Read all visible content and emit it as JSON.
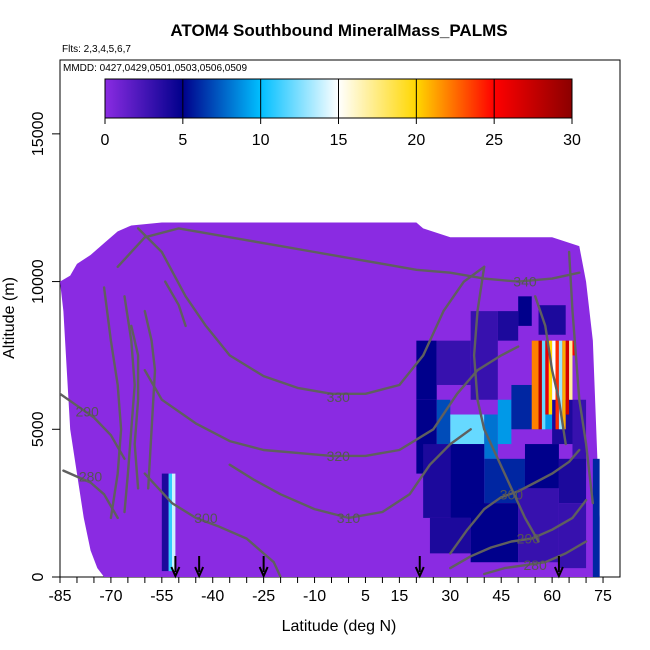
{
  "chart_data": {
    "type": "heatmap",
    "title": "ATOM4 Southbound MineralMass_PALMS",
    "flights_text": "Flts: 2,3,4,5,6,7",
    "dates_text": "MMDD: 0427,0429,0501,0503,0506,0509",
    "xlabel": "Latitude (deg N)",
    "ylabel": "Altitude (m)",
    "xlim": [
      -85,
      80
    ],
    "ylim": [
      0,
      17500
    ],
    "x_ticks": [
      -85,
      -70,
      -55,
      -40,
      -25,
      -10,
      5,
      15,
      30,
      45,
      60,
      75
    ],
    "y_ticks": [
      0,
      5000,
      10000,
      15000
    ],
    "colorbar": {
      "min": 0,
      "max": 30,
      "ticks": [
        0,
        5,
        10,
        15,
        20,
        25,
        30
      ],
      "colors": [
        "#8a2be2",
        "#00008b",
        "#00bfff",
        "#ffffff",
        "#ffd700",
        "#ff0000",
        "#8b0000"
      ]
    },
    "coverage_upper_km": [
      [
        -85,
        10
      ],
      [
        -82,
        10.2
      ],
      [
        -80,
        10.6
      ],
      [
        -76,
        10.9
      ],
      [
        -72,
        11.3
      ],
      [
        -68,
        11.7
      ],
      [
        -64,
        11.9
      ],
      [
        -55,
        12
      ],
      [
        -40,
        12
      ],
      [
        -25,
        12
      ],
      [
        -10,
        12
      ],
      [
        0,
        12
      ],
      [
        10,
        12
      ],
      [
        20,
        12
      ],
      [
        22,
        11.8
      ],
      [
        30,
        11.5
      ],
      [
        40,
        11.5
      ],
      [
        50,
        11.5
      ],
      [
        60,
        11.5
      ],
      [
        68,
        11.2
      ],
      [
        70,
        10
      ],
      [
        72,
        8
      ],
      [
        73,
        5
      ],
      [
        74,
        2
      ],
      [
        74,
        0
      ]
    ],
    "coverage_lower_km": [
      [
        -85,
        10
      ],
      [
        -84,
        9
      ],
      [
        -83,
        7
      ],
      [
        -82,
        5
      ],
      [
        -80,
        3.5
      ],
      [
        -78,
        2
      ],
      [
        -76,
        0.9
      ],
      [
        -74,
        0.3
      ],
      [
        -72,
        0
      ]
    ],
    "cells": [
      {
        "x": [
          -55,
          -53
        ],
        "y": [
          0.2,
          3.5
        ],
        "v": 4
      },
      {
        "x": [
          -53,
          -52
        ],
        "y": [
          0.2,
          3.5
        ],
        "v": 11
      },
      {
        "x": [
          -52,
          -51
        ],
        "y": [
          0.2,
          3.5
        ],
        "v": 14
      },
      {
        "x": [
          20,
          26
        ],
        "y": [
          6.0,
          8.0
        ],
        "v": 5
      },
      {
        "x": [
          26,
          36
        ],
        "y": [
          6.5,
          8.0
        ],
        "v": 3
      },
      {
        "x": [
          36,
          44
        ],
        "y": [
          6.0,
          9.0
        ],
        "v": 3
      },
      {
        "x": [
          44,
          50
        ],
        "y": [
          8.0,
          9.0
        ],
        "v": 4
      },
      {
        "x": [
          50,
          54
        ],
        "y": [
          8.5,
          9.5
        ],
        "v": 5
      },
      {
        "x": [
          56,
          64
        ],
        "y": [
          8.2,
          9.2
        ],
        "v": 4
      },
      {
        "x": [
          20,
          26
        ],
        "y": [
          3.5,
          6.0
        ],
        "v": 5
      },
      {
        "x": [
          26,
          30
        ],
        "y": [
          4.5,
          6.0
        ],
        "v": 7
      },
      {
        "x": [
          30,
          40
        ],
        "y": [
          4.5,
          5.5
        ],
        "v": 12
      },
      {
        "x": [
          40,
          44
        ],
        "y": [
          4.0,
          5.5
        ],
        "v": 8
      },
      {
        "x": [
          44,
          48
        ],
        "y": [
          4.5,
          6.0
        ],
        "v": 9
      },
      {
        "x": [
          48,
          54
        ],
        "y": [
          5.0,
          6.5
        ],
        "v": 6
      },
      {
        "x": [
          54,
          56
        ],
        "y": [
          5.0,
          7.0
        ],
        "v": 7
      },
      {
        "x": [
          56,
          60
        ],
        "y": [
          5.0,
          6.0
        ],
        "v": 9
      },
      {
        "x": [
          60,
          66
        ],
        "y": [
          4.5,
          6.0
        ],
        "v": 4
      },
      {
        "x": [
          66,
          70
        ],
        "y": [
          3.5,
          6.0
        ],
        "v": 3
      },
      {
        "x": [
          22,
          30
        ],
        "y": [
          2.0,
          4.5
        ],
        "v": 4
      },
      {
        "x": [
          30,
          40
        ],
        "y": [
          2.0,
          4.5
        ],
        "v": 5
      },
      {
        "x": [
          40,
          52
        ],
        "y": [
          2.5,
          4.0
        ],
        "v": 6
      },
      {
        "x": [
          52,
          62
        ],
        "y": [
          3.0,
          4.5
        ],
        "v": 5
      },
      {
        "x": [
          62,
          70
        ],
        "y": [
          2.5,
          4.0
        ],
        "v": 4
      },
      {
        "x": [
          24,
          36
        ],
        "y": [
          0.8,
          2.0
        ],
        "v": 4
      },
      {
        "x": [
          36,
          50
        ],
        "y": [
          0.5,
          2.5
        ],
        "v": 5
      },
      {
        "x": [
          50,
          62
        ],
        "y": [
          0.5,
          3.0
        ],
        "v": 3
      },
      {
        "x": [
          62,
          70
        ],
        "y": [
          0.3,
          2.5
        ],
        "v": 3
      },
      {
        "x": [
          54,
          56
        ],
        "y": [
          5.0,
          8.0
        ],
        "v": 22
      },
      {
        "x": [
          56,
          57
        ],
        "y": [
          5.0,
          8.0
        ],
        "v": 28
      },
      {
        "x": [
          57,
          58
        ],
        "y": [
          5.0,
          8.0
        ],
        "v": 12
      },
      {
        "x": [
          58,
          59
        ],
        "y": [
          5.5,
          8.0
        ],
        "v": 26
      },
      {
        "x": [
          59,
          60
        ],
        "y": [
          5.5,
          8.0
        ],
        "v": 20
      },
      {
        "x": [
          60,
          61
        ],
        "y": [
          6.0,
          8.0
        ],
        "v": 15
      },
      {
        "x": [
          61,
          62
        ],
        "y": [
          5.0,
          8.0
        ],
        "v": 24
      },
      {
        "x": [
          62,
          63
        ],
        "y": [
          5.0,
          8.0
        ],
        "v": 13
      },
      {
        "x": [
          63,
          64
        ],
        "y": [
          5.0,
          8.0
        ],
        "v": 21
      },
      {
        "x": [
          64,
          65
        ],
        "y": [
          5.5,
          8.0
        ],
        "v": 27
      },
      {
        "x": [
          65,
          66
        ],
        "y": [
          6.0,
          8.0
        ],
        "v": 17
      },
      {
        "x": [
          66,
          67
        ],
        "y": [
          7.5,
          8.0
        ],
        "v": 25
      },
      {
        "x": [
          72,
          74
        ],
        "y": [
          0.0,
          4.0
        ],
        "v": 6
      }
    ],
    "contours": [
      {
        "label": "340",
        "label_at": [
          52,
          10.0
        ],
        "points": [
          [
            -68,
            10.5
          ],
          [
            -60,
            11.5
          ],
          [
            -50,
            11.8
          ],
          [
            -40,
            11.6
          ],
          [
            -30,
            11.4
          ],
          [
            -20,
            11.2
          ],
          [
            -10,
            11.0
          ],
          [
            0,
            10.8
          ],
          [
            10,
            10.6
          ],
          [
            20,
            10.4
          ],
          [
            30,
            10.3
          ],
          [
            40,
            10.1
          ],
          [
            50,
            10.0
          ],
          [
            60,
            10.1
          ],
          [
            68,
            10.3
          ]
        ]
      },
      {
        "label": "330",
        "label_at": [
          -3,
          6.1
        ],
        "points": [
          [
            -62,
            11.8
          ],
          [
            -55,
            11.0
          ],
          [
            -48,
            9.5
          ],
          [
            -42,
            8.5
          ],
          [
            -35,
            7.5
          ],
          [
            -25,
            6.8
          ],
          [
            -15,
            6.4
          ],
          [
            -5,
            6.2
          ],
          [
            5,
            6.2
          ],
          [
            15,
            6.5
          ],
          [
            22,
            7.5
          ],
          [
            28,
            9.0
          ],
          [
            34,
            10.0
          ],
          [
            40,
            10.5
          ]
        ]
      },
      {
        "label": "320",
        "label_at": [
          -3,
          4.1
        ],
        "points": [
          [
            -60,
            7.0
          ],
          [
            -55,
            6.0
          ],
          [
            -45,
            5.2
          ],
          [
            -35,
            4.6
          ],
          [
            -25,
            4.3
          ],
          [
            -15,
            4.2
          ],
          [
            -5,
            4.1
          ],
          [
            5,
            4.1
          ],
          [
            15,
            4.3
          ],
          [
            25,
            5.0
          ],
          [
            32,
            6.2
          ],
          [
            38,
            7.0
          ],
          [
            45,
            7.5
          ],
          [
            50,
            7.8
          ]
        ]
      },
      {
        "label": "310",
        "label_at": [
          0,
          2.0
        ],
        "points": [
          [
            -35,
            3.8
          ],
          [
            -28,
            3.3
          ],
          [
            -20,
            2.8
          ],
          [
            -10,
            2.3
          ],
          [
            0,
            2.0
          ],
          [
            10,
            2.2
          ],
          [
            18,
            2.8
          ],
          [
            24,
            3.8
          ],
          [
            30,
            4.5
          ],
          [
            36,
            5.0
          ]
        ]
      },
      {
        "label": "300",
        "label_at": [
          -42,
          2.0
        ],
        "points": [
          [
            -60,
            3.5
          ],
          [
            -52,
            2.5
          ],
          [
            -45,
            2.0
          ],
          [
            -38,
            1.7
          ],
          [
            -30,
            1.3
          ],
          [
            -25,
            0.8
          ],
          [
            -22,
            0.5
          ],
          [
            -20,
            0.0
          ]
        ]
      },
      {
        "label": "300",
        "label_at": [
          48,
          2.8
        ],
        "points": [
          [
            30,
            0.8
          ],
          [
            35,
            1.6
          ],
          [
            40,
            2.3
          ],
          [
            45,
            2.7
          ],
          [
            50,
            2.9
          ],
          [
            55,
            3.2
          ],
          [
            60,
            3.5
          ],
          [
            65,
            3.9
          ],
          [
            68,
            4.3
          ]
        ]
      },
      {
        "label": "290",
        "label_at": [
          -77,
          5.6
        ],
        "points": [
          [
            -85,
            6.2
          ],
          [
            -80,
            5.8
          ],
          [
            -75,
            5.4
          ],
          [
            -70,
            4.8
          ],
          [
            -66,
            4.0
          ]
        ]
      },
      {
        "label": "290",
        "label_at": [
          53,
          1.3
        ],
        "points": [
          [
            30,
            0.3
          ],
          [
            36,
            0.7
          ],
          [
            42,
            1.0
          ],
          [
            48,
            1.2
          ],
          [
            54,
            1.3
          ],
          [
            60,
            1.6
          ],
          [
            66,
            2.0
          ],
          [
            70,
            2.6
          ]
        ]
      },
      {
        "label": "280",
        "label_at": [
          -76,
          3.4
        ],
        "points": [
          [
            -84,
            3.6
          ],
          [
            -80,
            3.4
          ],
          [
            -76,
            3.2
          ],
          [
            -72,
            2.8
          ],
          [
            -68,
            2.0
          ]
        ]
      },
      {
        "label": "280",
        "label_at": [
          55,
          0.4
        ],
        "points": [
          [
            40,
            0.1
          ],
          [
            46,
            0.3
          ],
          [
            52,
            0.4
          ],
          [
            58,
            0.5
          ],
          [
            64,
            0.8
          ],
          [
            70,
            1.2
          ]
        ]
      },
      {
        "label": "",
        "label_at": null,
        "points": [
          [
            -72,
            9.8
          ],
          [
            -70,
            8.0
          ],
          [
            -68,
            6.5
          ],
          [
            -67,
            5.0
          ],
          [
            -68,
            3.5
          ],
          [
            -70,
            2.0
          ]
        ]
      },
      {
        "label": "",
        "label_at": null,
        "points": [
          [
            -66,
            9.5
          ],
          [
            -64,
            8.0
          ],
          [
            -63,
            6.5
          ],
          [
            -64,
            5.0
          ],
          [
            -65,
            3.5
          ],
          [
            -66,
            2.2
          ]
        ]
      },
      {
        "label": "",
        "label_at": null,
        "points": [
          [
            -64,
            8.5
          ],
          [
            -62,
            7.5
          ],
          [
            -62,
            6.0
          ],
          [
            -63,
            4.5
          ],
          [
            -62,
            3.0
          ]
        ]
      },
      {
        "label": "",
        "label_at": null,
        "points": [
          [
            -60,
            9.0
          ],
          [
            -58,
            8.0
          ],
          [
            -57,
            7.0
          ],
          [
            -58,
            5.0
          ],
          [
            -59,
            3.0
          ]
        ]
      },
      {
        "label": "",
        "label_at": null,
        "points": [
          [
            -54,
            10.0
          ],
          [
            -50,
            9.2
          ],
          [
            -48,
            8.5
          ]
        ]
      },
      {
        "label": "",
        "label_at": null,
        "points": [
          [
            40,
            10.5
          ],
          [
            38,
            9.0
          ],
          [
            37,
            7.5
          ],
          [
            38,
            6.0
          ],
          [
            40,
            5.0
          ],
          [
            44,
            4.0
          ],
          [
            48,
            3.0
          ],
          [
            52,
            2.0
          ],
          [
            56,
            1.2
          ]
        ]
      },
      {
        "label": "",
        "label_at": null,
        "points": [
          [
            55,
            9.5
          ],
          [
            58,
            8.5
          ],
          [
            60,
            7.0
          ],
          [
            62,
            6.0
          ],
          [
            64,
            4.5
          ]
        ]
      },
      {
        "label": "",
        "label_at": null,
        "points": [
          [
            65,
            11.0
          ],
          [
            66,
            9.0
          ],
          [
            67,
            7.5
          ],
          [
            68,
            6.0
          ],
          [
            70,
            4.5
          ],
          [
            72,
            2.5
          ]
        ]
      }
    ],
    "arrows_x": [
      -51,
      -44,
      -25,
      21,
      62
    ]
  }
}
